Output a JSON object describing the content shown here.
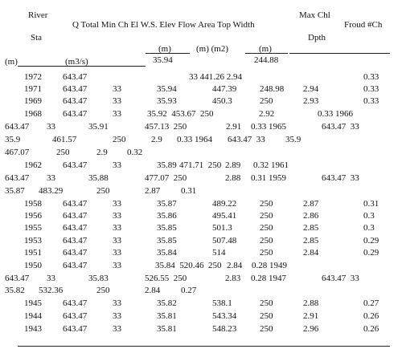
{
  "header": {
    "river": "River",
    "sta": "Sta",
    "main": "Q Total Min Ch El W.S. Elev Flow Area Top Width",
    "max_chl": "Max Chl",
    "dpth": "Dpth",
    "froude": "Froud #Ch",
    "unit_m_left": "(m)",
    "unit_m3s": "(m3/s)",
    "unit_m_chel": "(m)",
    "unit_m_m2": "(m) (m2)",
    "unit_m_tw": "(m)",
    "first_val_35_94": "35.94",
    "first_val_244_88": "244.88"
  },
  "rows": [
    [
      "1972",
      "643.47",
      "",
      "",
      "33 441.26 2.94",
      "",
      "",
      "0.33"
    ],
    [
      "1971",
      "643.47",
      "33",
      "35.94",
      "447.39",
      "248.98",
      "2.94",
      "0.33"
    ],
    [
      "1969",
      "643.47",
      "33",
      "35.93",
      "450.3",
      "250",
      "2.93",
      "0.33"
    ],
    [
      "1968",
      "643.47",
      "33",
      "35.92  453.67  250",
      "",
      "",
      "2.92",
      "0.33 1966"
    ],
    [
      "643.47",
      "33",
      "35.91",
      "457.13  250",
      "2.91",
      "",
      "0.33 1965",
      "643.47  33"
    ],
    [
      "35.9",
      "461.57",
      "250",
      "2.9",
      "0.33 1964",
      "643.47  33",
      "35.9",
      ""
    ],
    [
      "467.07",
      "250",
      "2.9",
      "0.32",
      "",
      "",
      "",
      ""
    ],
    [
      "1962",
      "643.47",
      "33",
      "35.89",
      "471.71  250",
      "2.89",
      "0.32 1961",
      ""
    ],
    [
      "643.47",
      "33",
      "35.88",
      "477.07  250",
      "2.88",
      "0.31 1959",
      "643.47  33",
      ""
    ],
    [
      "35.87",
      "483.29",
      "250",
      "2.87",
      "0.31",
      "",
      "",
      ""
    ],
    [
      "1958",
      "643.47",
      "33",
      "35.87",
      "489.22",
      "250",
      "2.87",
      "0.31"
    ],
    [
      "1956",
      "643.47",
      "33",
      "35.86",
      "495.41",
      "250",
      "2.86",
      "0.3"
    ],
    [
      "1955",
      "643.47",
      "33",
      "35.85",
      "501.3",
      "250",
      "2.85",
      "0.3"
    ],
    [
      "1953",
      "643.47",
      "33",
      "35.85",
      "507.48",
      "250",
      "2.85",
      "0.29"
    ],
    [
      "1951",
      "643.47",
      "33",
      "35.84",
      "514",
      "250",
      "2.84",
      "0.29"
    ],
    [
      "1950",
      "643.47",
      "33",
      "35.84  520.46  250",
      "",
      "",
      "2.84",
      "0.28 1949"
    ],
    [
      "643.47",
      "33",
      "35.83",
      "526.55  250",
      "2.83",
      "",
      "0.28 1947",
      "643.47  33"
    ],
    [
      "35.82",
      "532.36",
      "250",
      "2.84",
      "0.27",
      "",
      "",
      ""
    ],
    [
      "1945",
      "643.47",
      "33",
      "35.82",
      "538.1",
      "250",
      "2.88",
      "0.27"
    ],
    [
      "1944",
      "643.47",
      "33",
      "35.81",
      "543.34",
      "250",
      "2.91",
      "0.26"
    ],
    [
      "1943",
      "643.47",
      "33",
      "35.81",
      "548.23",
      "250",
      "2.96",
      "0.26"
    ]
  ]
}
